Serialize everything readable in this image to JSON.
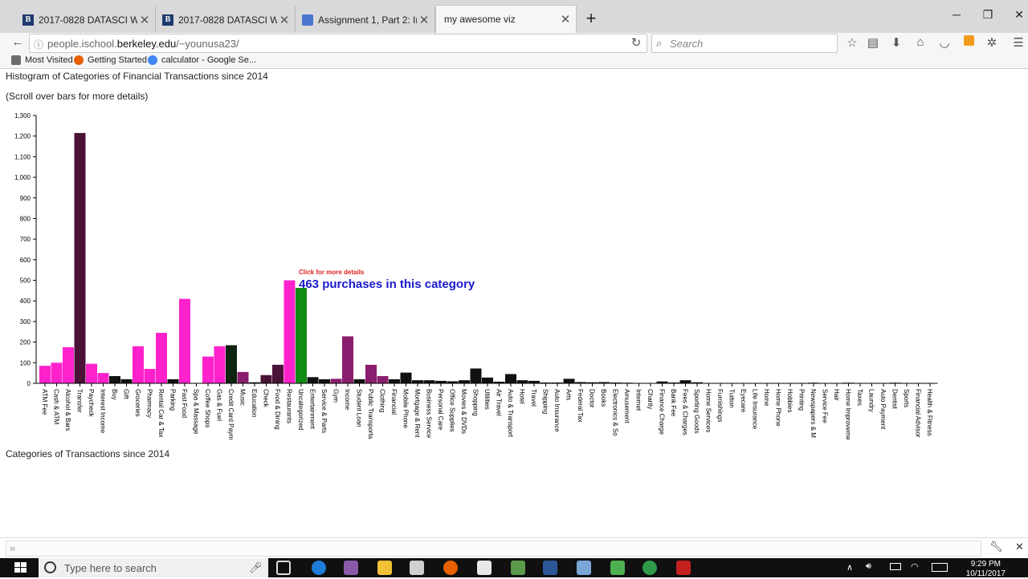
{
  "browser": {
    "tabs": [
      {
        "title": "2017-0828 DATASCI W209: A",
        "icon": "berkeley-b-icon"
      },
      {
        "title": "2017-0828 DATASCI W209: A",
        "icon": "berkeley-b-icon"
      },
      {
        "title": "Assignment 1, Part 2: Interac",
        "icon": "docs-icon"
      },
      {
        "title": "my awesome viz",
        "icon": ""
      }
    ],
    "url_prefix": "people.ischool.",
    "url_domain": "berkeley.edu",
    "url_path": "/~younusa23/",
    "search_placeholder": "Search",
    "bookmarks": [
      "Most Visited",
      "Getting Started",
      "calculator - Google Se..."
    ]
  },
  "page": {
    "heading": "Histogram of Categories of Financial Transactions since 2014",
    "instruction": "(Scroll over bars for more details)",
    "footer_heading": "Categories of Transactions since 2014"
  },
  "tooltip": {
    "hint": "Click for more details",
    "text": "463 purchases in this category"
  },
  "taskbar": {
    "search_placeholder": "Type here to search",
    "time": "9:29 PM",
    "date": "10/11/2017"
  },
  "colors": {
    "pink": "#ff22cc",
    "purple": "#8a1e6e",
    "dark_purple": "#4a1236",
    "black": "#111111",
    "dark_green": "#0c2410",
    "highlight": "#138a13"
  },
  "chart_data": {
    "type": "bar",
    "title": "Histogram of Categories of Financial Transactions since 2014",
    "ylim": [
      0,
      1300
    ],
    "yticks": [
      0,
      100,
      200,
      300,
      400,
      500,
      600,
      700,
      800,
      900,
      1000,
      1100,
      1200,
      1300
    ],
    "ytick_labels": [
      "0",
      "100",
      "200",
      "300",
      "400",
      "500",
      "600",
      "700",
      "800",
      "900",
      "1,000",
      "1,100",
      "1,200",
      "1,300"
    ],
    "highlighted_category": "Uncategorized",
    "categories": [
      "ATM Fee",
      "Cash & ATM",
      "Alcohol & Bars",
      "Transfer",
      "Paycheck",
      "Interest Income",
      "Buy",
      "Gift",
      "Groceries",
      "Pharmacy",
      "Rental Car & Tax",
      "Parking",
      "Fast Food",
      "Spa & Massage",
      "Coffee Shops",
      "Gas & Fuel",
      "Credit Card Paym",
      "Music",
      "Education",
      "Check",
      "Food & Dining",
      "Restaurants",
      "Uncategorized",
      "Entertainment",
      "Service & Parts",
      "Gym",
      "Income",
      "Student Loan",
      "Public Transporta",
      "Clothing",
      "Financial",
      "Mobile Phone",
      "Mortgage & Rent",
      "Business Service",
      "Personal Care",
      "Office Supplies",
      "Movies & DVDs",
      "Shopping",
      "Utilities",
      "Air Travel",
      "Auto & Transport",
      "Hotel",
      "Travel",
      "Shipping",
      "Auto Insurance",
      "Arts",
      "Federal Tax",
      "Doctor",
      "Books",
      "Electronics & So",
      "Amusement",
      "Internet",
      "Charity",
      "Finance Charge",
      "Bank Fee",
      "Fees & Charges",
      "Sporting Goods",
      "Home Services",
      "Furnishings",
      "Tuition",
      "Eyecare",
      "Life Insurance",
      "Home",
      "Home Phone",
      "Hobbies",
      "Printing",
      "Newspapers & M",
      "Service Fee",
      "Hair",
      "Home Improveme",
      "Taxes",
      "Laundry",
      "Auto Payment",
      "Dentist",
      "Sports",
      "Financial Advisor",
      "Health & Fitness"
    ],
    "values": [
      85,
      100,
      175,
      1215,
      95,
      50,
      35,
      20,
      180,
      70,
      245,
      20,
      410,
      2,
      130,
      180,
      185,
      55,
      5,
      40,
      90,
      500,
      463,
      30,
      20,
      22,
      228,
      20,
      90,
      35,
      20,
      52,
      15,
      15,
      12,
      10,
      15,
      72,
      28,
      8,
      45,
      15,
      12,
      4,
      4,
      22,
      6,
      5,
      6,
      4,
      3,
      2,
      1,
      9,
      4,
      15,
      5,
      1,
      1,
      2,
      1,
      1,
      2,
      1,
      1,
      2,
      3,
      1,
      1,
      3,
      1,
      2,
      2,
      3,
      1,
      1,
      1
    ],
    "bar_color_keys": [
      "pink",
      "pink",
      "pink",
      "dark_purple",
      "pink",
      "pink",
      "black",
      "black",
      "pink",
      "pink",
      "pink",
      "black",
      "pink",
      "pink",
      "pink",
      "pink",
      "dark_green",
      "purple",
      "black",
      "dark_purple",
      "dark_purple",
      "pink",
      "highlight",
      "black",
      "black",
      "purple",
      "purple",
      "black",
      "purple",
      "purple",
      "black",
      "black",
      "black",
      "black",
      "black",
      "black",
      "black",
      "black",
      "black",
      "black",
      "black",
      "black",
      "black",
      "black",
      "black",
      "black",
      "black",
      "black",
      "black",
      "black",
      "black",
      "black",
      "black",
      "black",
      "black",
      "black",
      "black",
      "black",
      "black",
      "black",
      "black",
      "black",
      "black",
      "black",
      "black",
      "black",
      "black",
      "black",
      "black",
      "black",
      "black",
      "black",
      "black",
      "black",
      "black",
      "black",
      "black"
    ]
  }
}
